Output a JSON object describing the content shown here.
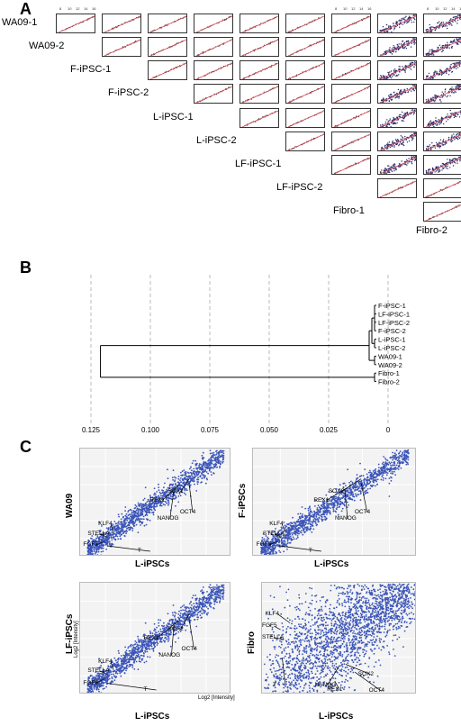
{
  "panels": {
    "a": "A",
    "b": "B",
    "c": "C"
  },
  "panel_a": {
    "samples": [
      "WA09-1",
      "WA09-2",
      "F-iPSC-1",
      "F-iPSC-2",
      "L-iPSC-1",
      "L-iPSC-2",
      "LF-iPSC-1",
      "LF-iPSC-2",
      "Fibro-1",
      "Fibro-2"
    ],
    "ticks": [
      "8",
      "10",
      "12",
      "14",
      "16"
    ],
    "colors": {
      "points": "#2b2b2b",
      "fit_line": "#e0505a",
      "noisy_points": "#2a2a6a"
    }
  },
  "chart_data": [
    {
      "type": "dendrogram",
      "xlim": [
        0.125,
        0
      ],
      "x_ticks": [
        "0.125",
        "0.100",
        "0.075",
        "0.050",
        "0.025",
        "0"
      ],
      "leaves": [
        "F-iPSC-1",
        "LF-iPSC-1",
        "LF-iPSC-2",
        "F-iPSC-2",
        "L-iPSC-1",
        "L-iPSC-2",
        "WA09-1",
        "WA09-2",
        "Fibro-1",
        "Fibro-2"
      ],
      "root_height": 0.121,
      "grid": true
    },
    {
      "type": "scatter",
      "xlabel": "L-iPSCs",
      "ylabel": "WA09",
      "genes": [
        "SOX2",
        "REX1",
        "OCT4",
        "NANOG",
        "KLF4",
        "STELLA",
        "FGF5",
        "T"
      ]
    },
    {
      "type": "scatter",
      "xlabel": "L-iPSCs",
      "ylabel": "F-iPSCs",
      "genes": [
        "SOX2",
        "REX1",
        "OCT4",
        "NANOG",
        "KLF4",
        "STELLA",
        "FGF5",
        "T"
      ]
    },
    {
      "type": "scatter",
      "xlabel": "L-iPSCs",
      "ylabel": "LF-iPSCs",
      "ylabel_small": "Log2 [Intensity]",
      "genes": [
        "SOX2",
        "REX1",
        "OCT4",
        "NANOG",
        "KLF4",
        "STELLA",
        "FGF5",
        "T"
      ]
    },
    {
      "type": "scatter",
      "xlabel": "L-iPSCs",
      "xlabel_small": "Log2 [Intensity]",
      "ylabel": "Fibro",
      "genes": [
        "KLF4",
        "FGF5",
        "STELLA",
        "T",
        "NANOG",
        "REX1",
        "SOX2",
        "OCT4"
      ]
    }
  ],
  "panel_c_color": "#3b55b8"
}
